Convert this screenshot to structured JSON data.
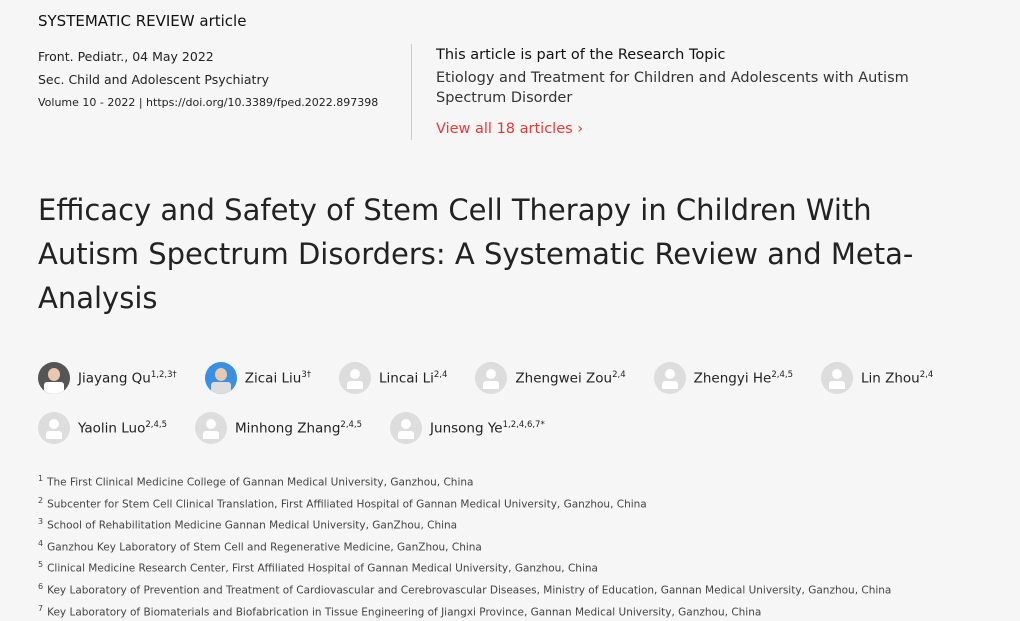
{
  "article_type": "SYSTEMATIC REVIEW article",
  "meta": {
    "journal_date": "Front. Pediatr., 04 May 2022",
    "section": "Sec. Child and Adolescent Psychiatry",
    "volume_doi": "Volume 10 - 2022 | https://doi.org/10.3389/fped.2022.897398"
  },
  "research_topic": {
    "heading": "This article is part of the Research Topic",
    "name": "Etiology and Treatment for Children and Adolescents with Autism Spectrum Disorder",
    "link": "View all 18 articles",
    "link_color": "#e53935"
  },
  "title": "Efficacy and Safety of Stem Cell Therapy in Children With Autism Spectrum Disorders: A Systematic Review and Meta-Analysis",
  "authors": [
    {
      "name": "Jiayang Qu",
      "sup": "1,2,3†",
      "avatar": "photo"
    },
    {
      "name": "Zicai Liu",
      "sup": "3†",
      "avatar": "photo"
    },
    {
      "name": "Lincai Li",
      "sup": "2,4",
      "avatar": "placeholder"
    },
    {
      "name": "Zhengwei Zou",
      "sup": "2,4",
      "avatar": "placeholder"
    },
    {
      "name": "Zhengyi He",
      "sup": "2,4,5",
      "avatar": "placeholder"
    },
    {
      "name": "Lin Zhou",
      "sup": "2,4",
      "avatar": "placeholder"
    },
    {
      "name": "Yaolin Luo",
      "sup": "2,4,5",
      "avatar": "placeholder"
    },
    {
      "name": "Minhong Zhang",
      "sup": "2,4,5",
      "avatar": "placeholder"
    },
    {
      "name": "Junsong Ye",
      "sup": "1,2,4,6,7*",
      "avatar": "placeholder"
    }
  ],
  "affiliations": [
    {
      "n": "1",
      "text": "The First Clinical Medicine College of Gannan Medical University, Ganzhou, China"
    },
    {
      "n": "2",
      "text": "Subcenter for Stem Cell Clinical Translation, First Affiliated Hospital of Gannan Medical University, Ganzhou, China"
    },
    {
      "n": "3",
      "text": "School of Rehabilitation Medicine Gannan Medical University, GanZhou, China"
    },
    {
      "n": "4",
      "text": "Ganzhou Key Laboratory of Stem Cell and Regenerative Medicine, GanZhou, China"
    },
    {
      "n": "5",
      "text": "Clinical Medicine Research Center, First Affiliated Hospital of Gannan Medical University, Ganzhou, China"
    },
    {
      "n": "6",
      "text": "Key Laboratory of Prevention and Treatment of Cardiovascular and Cerebrovascular Diseases, Ministry of Education, Gannan Medical University, Ganzhou, China"
    },
    {
      "n": "7",
      "text": "Key Laboratory of Biomaterials and Biofabrication in Tissue Engineering of Jiangxi Province, Gannan Medical University, Ganzhou, China"
    }
  ]
}
